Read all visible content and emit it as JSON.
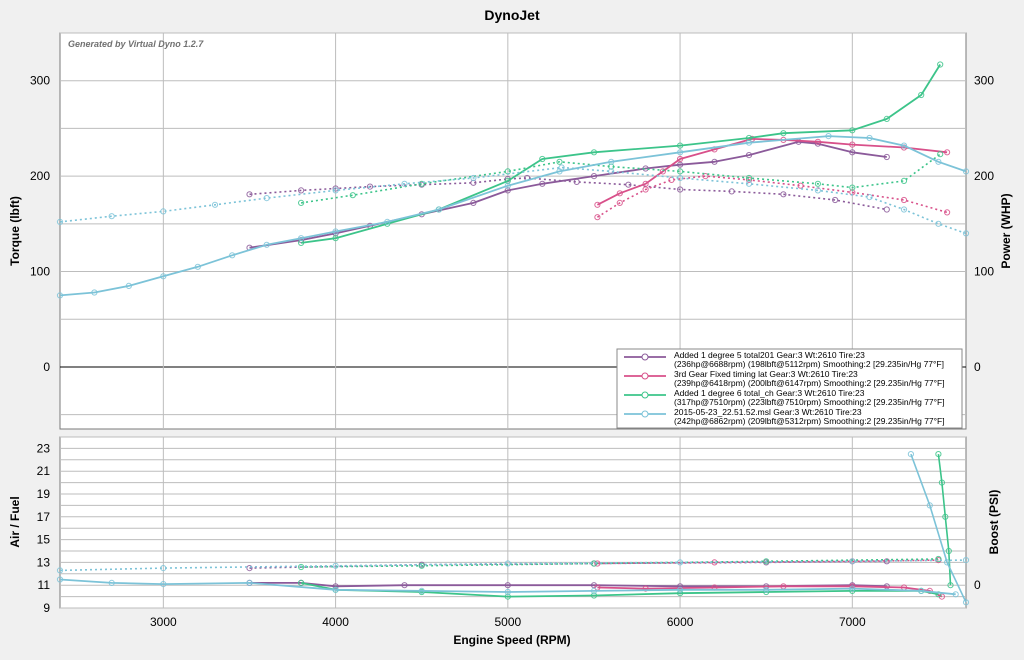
{
  "chart_data": {
    "title": "DynoJet",
    "generator_note": "Generated by Virtual Dyno 1.2.7",
    "x_label": "Engine Speed (RPM)",
    "x_ticks": [
      3000,
      4000,
      5000,
      6000,
      7000
    ],
    "xlim": [
      2400,
      7660
    ],
    "top": {
      "type": "line",
      "y_left_label": "Torque (lbft)",
      "y_right_label": "Power (WHP)",
      "y_ticks": [
        0,
        100,
        200,
        300
      ],
      "ylim": [
        -65,
        350
      ],
      "grid": true
    },
    "bottom": {
      "type": "line",
      "y_left_label": "Air / Fuel",
      "y_right_label": "Boost (PSI)",
      "y_ticks": [
        9,
        11,
        13,
        15,
        17,
        19,
        21,
        23
      ],
      "y_right_ticks": [
        "0"
      ],
      "ylim": [
        9,
        24
      ],
      "grid": true
    },
    "legend_position": "bottom-right",
    "series": [
      {
        "name": "Added 1 degree 5 total201 Gear:3 Wt:2610 Tire:23",
        "detail": "(236hp@6688rpm) (198lbft@5112rpm) Smoothing:2 [29.235in/Hg 77°F]",
        "color": "#8b5a9a",
        "power": [
          [
            3500,
            125
          ],
          [
            3800,
            133
          ],
          [
            4000,
            140
          ],
          [
            4200,
            148
          ],
          [
            4500,
            160
          ],
          [
            4800,
            172
          ],
          [
            5000,
            185
          ],
          [
            5200,
            192
          ],
          [
            5500,
            200
          ],
          [
            5800,
            208
          ],
          [
            6000,
            212
          ],
          [
            6200,
            215
          ],
          [
            6400,
            222
          ],
          [
            6688,
            236
          ],
          [
            6800,
            234
          ],
          [
            7000,
            225
          ],
          [
            7200,
            220
          ]
        ],
        "torque": [
          [
            3500,
            181
          ],
          [
            3800,
            185
          ],
          [
            4000,
            187
          ],
          [
            4200,
            189
          ],
          [
            4500,
            191
          ],
          [
            4800,
            193
          ],
          [
            5000,
            197
          ],
          [
            5112,
            198
          ],
          [
            5400,
            194
          ],
          [
            5700,
            191
          ],
          [
            6000,
            186
          ],
          [
            6300,
            184
          ],
          [
            6600,
            181
          ],
          [
            6900,
            175
          ],
          [
            7200,
            165
          ]
        ],
        "afr": [
          [
            3500,
            11.2
          ],
          [
            3800,
            11.2
          ],
          [
            4000,
            10.9
          ],
          [
            4400,
            11.0
          ],
          [
            5000,
            11.0
          ],
          [
            5500,
            11.0
          ],
          [
            6000,
            10.9
          ],
          [
            6500,
            10.9
          ],
          [
            7000,
            11.0
          ],
          [
            7200,
            10.9
          ]
        ],
        "afr_ref": [
          [
            3500,
            12.5
          ],
          [
            4500,
            12.8
          ],
          [
            5500,
            12.9
          ],
          [
            6500,
            13.0
          ],
          [
            7200,
            13.1
          ]
        ]
      },
      {
        "name": "3rd Gear Fixed timing lat Gear:3 Wt:2610 Tire:23",
        "detail": "(239hp@6418rpm) (200lbft@6147rpm) Smoothing:2 [29.235in/Hg 77°F]",
        "color": "#d8508a",
        "power": [
          [
            5520,
            170
          ],
          [
            5650,
            182
          ],
          [
            5800,
            192
          ],
          [
            5900,
            205
          ],
          [
            6000,
            218
          ],
          [
            6200,
            228
          ],
          [
            6418,
            239
          ],
          [
            6600,
            238
          ],
          [
            6800,
            236
          ],
          [
            7000,
            233
          ],
          [
            7300,
            230
          ],
          [
            7550,
            225
          ]
        ],
        "torque": [
          [
            5520,
            157
          ],
          [
            5650,
            172
          ],
          [
            5800,
            186
          ],
          [
            5950,
            196
          ],
          [
            6147,
            200
          ],
          [
            6400,
            196
          ],
          [
            6700,
            190
          ],
          [
            7000,
            183
          ],
          [
            7300,
            175
          ],
          [
            7550,
            162
          ]
        ],
        "afr": [
          [
            5520,
            10.8
          ],
          [
            5800,
            10.7
          ],
          [
            6200,
            10.8
          ],
          [
            6600,
            10.9
          ],
          [
            7000,
            10.9
          ],
          [
            7300,
            10.8
          ],
          [
            7450,
            10.5
          ],
          [
            7520,
            10.0
          ]
        ],
        "afr_ref": [
          [
            5520,
            12.9
          ],
          [
            6200,
            13.0
          ],
          [
            7000,
            13.1
          ],
          [
            7500,
            13.2
          ]
        ]
      },
      {
        "name": "Added 1 degree 6 total_ch Gear:3 Wt:2610 Tire:23",
        "detail": "(317hp@7510rpm) (223lbft@7510rpm) Smoothing:2 [29.235in/Hg 77°F]",
        "color": "#3cc48a",
        "power": [
          [
            3800,
            130
          ],
          [
            4000,
            135
          ],
          [
            4300,
            150
          ],
          [
            4600,
            165
          ],
          [
            5000,
            195
          ],
          [
            5200,
            218
          ],
          [
            5500,
            225
          ],
          [
            6000,
            232
          ],
          [
            6400,
            240
          ],
          [
            6600,
            245
          ],
          [
            7000,
            248
          ],
          [
            7200,
            260
          ],
          [
            7400,
            285
          ],
          [
            7510,
            317
          ]
        ],
        "torque": [
          [
            3800,
            172
          ],
          [
            4100,
            180
          ],
          [
            4500,
            192
          ],
          [
            5000,
            205
          ],
          [
            5300,
            215
          ],
          [
            5600,
            210
          ],
          [
            6000,
            205
          ],
          [
            6400,
            198
          ],
          [
            6800,
            192
          ],
          [
            7000,
            188
          ],
          [
            7300,
            195
          ],
          [
            7510,
            223
          ]
        ],
        "afr": [
          [
            3800,
            11.2
          ],
          [
            4000,
            10.6
          ],
          [
            4500,
            10.4
          ],
          [
            5000,
            10.0
          ],
          [
            5500,
            10.1
          ],
          [
            6000,
            10.3
          ],
          [
            6500,
            10.4
          ],
          [
            7000,
            10.5
          ],
          [
            7400,
            10.5
          ],
          [
            7500,
            10.2
          ]
        ],
        "afr_ref": [
          [
            3800,
            12.6
          ],
          [
            4500,
            12.7
          ],
          [
            5500,
            12.9
          ],
          [
            6500,
            13.1
          ],
          [
            7500,
            13.3
          ]
        ],
        "boost": [
          [
            7500,
            22.5
          ],
          [
            7520,
            20.0
          ],
          [
            7540,
            17.0
          ],
          [
            7560,
            14.0
          ],
          [
            7570,
            11.0
          ]
        ]
      },
      {
        "name": "2015-05-23_22.51.52.msl Gear:3 Wt:2610 Tire:23",
        "detail": "(242hp@6862rpm) (209lbft@5312rpm) Smoothing:2 [29.235in/Hg 77°F]",
        "color": "#7cc3d8",
        "power": [
          [
            2400,
            75
          ],
          [
            2600,
            78
          ],
          [
            2800,
            85
          ],
          [
            3000,
            95
          ],
          [
            3200,
            105
          ],
          [
            3400,
            117
          ],
          [
            3600,
            128
          ],
          [
            3800,
            135
          ],
          [
            4000,
            142
          ],
          [
            4300,
            152
          ],
          [
            4600,
            165
          ],
          [
            5000,
            190
          ],
          [
            5300,
            205
          ],
          [
            5600,
            215
          ],
          [
            6000,
            225
          ],
          [
            6400,
            235
          ],
          [
            6862,
            242
          ],
          [
            7100,
            240
          ],
          [
            7300,
            232
          ],
          [
            7500,
            215
          ],
          [
            7660,
            205
          ]
        ],
        "torque": [
          [
            2400,
            152
          ],
          [
            2700,
            158
          ],
          [
            3000,
            163
          ],
          [
            3300,
            170
          ],
          [
            3600,
            177
          ],
          [
            4000,
            185
          ],
          [
            4400,
            192
          ],
          [
            4800,
            198
          ],
          [
            5312,
            209
          ],
          [
            5600,
            205
          ],
          [
            6000,
            198
          ],
          [
            6400,
            192
          ],
          [
            6800,
            185
          ],
          [
            7100,
            178
          ],
          [
            7300,
            165
          ],
          [
            7500,
            150
          ],
          [
            7660,
            140
          ]
        ],
        "afr": [
          [
            2400,
            11.5
          ],
          [
            2700,
            11.2
          ],
          [
            3000,
            11.1
          ],
          [
            3500,
            11.2
          ],
          [
            4000,
            10.6
          ],
          [
            4500,
            10.5
          ],
          [
            5000,
            10.4
          ],
          [
            5500,
            10.5
          ],
          [
            6000,
            10.6
          ],
          [
            6500,
            10.6
          ],
          [
            7000,
            10.7
          ],
          [
            7400,
            10.5
          ],
          [
            7600,
            10.2
          ]
        ],
        "afr_ref": [
          [
            2400,
            12.3
          ],
          [
            3000,
            12.5
          ],
          [
            4000,
            12.7
          ],
          [
            5000,
            12.9
          ],
          [
            6000,
            13.0
          ],
          [
            7000,
            13.1
          ],
          [
            7660,
            13.2
          ]
        ],
        "boost": [
          [
            7340,
            22.5
          ],
          [
            7450,
            18.0
          ],
          [
            7550,
            13.0
          ],
          [
            7660,
            9.5
          ]
        ]
      }
    ]
  }
}
